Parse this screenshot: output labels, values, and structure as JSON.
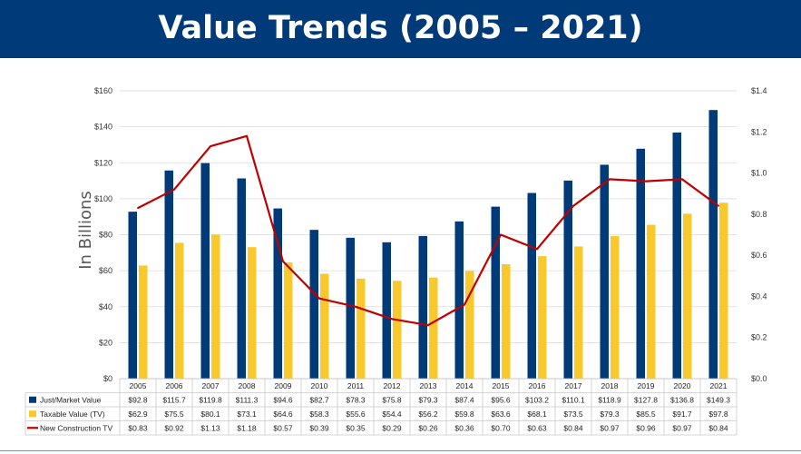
{
  "title": "Value Trends (2005 – 2021)",
  "colors": {
    "header_bg": "#003a78",
    "just_market": "#003a78",
    "taxable": "#f9c92b",
    "new_construction": "#c00000",
    "grid": "#d9d9d9"
  },
  "chart_data": {
    "type": "bar",
    "title": "",
    "ylabel": "In Billions",
    "ylim": [
      0,
      160
    ],
    "y_ticks": [
      "$0",
      "$20",
      "$40",
      "$60",
      "$80",
      "$100",
      "$120",
      "$140",
      "$160"
    ],
    "y2lim": [
      0,
      1.4
    ],
    "y2_ticks": [
      "$0.0",
      "$0.2",
      "$0.4",
      "$0.6",
      "$0.8",
      "$1.0",
      "$1.2",
      "$1.4"
    ],
    "grid": true,
    "legend": "data-table",
    "categories": [
      "2005",
      "2006",
      "2007",
      "2008",
      "2009",
      "2010",
      "2011",
      "2012",
      "2013",
      "2014",
      "2015",
      "2016",
      "2017",
      "2018",
      "2019",
      "2020",
      "2021"
    ],
    "series": [
      {
        "name": "Just/Market Value",
        "type": "bar",
        "axis": "left",
        "values": [
          92.8,
          115.7,
          119.8,
          111.3,
          94.6,
          82.7,
          78.3,
          75.8,
          79.3,
          87.4,
          95.6,
          103.2,
          110.1,
          118.9,
          127.8,
          136.8,
          149.3
        ],
        "labels": [
          "$92.8",
          "$115.7",
          "$119.8",
          "$111.3",
          "$94.6",
          "$82.7",
          "$78.3",
          "$75.8",
          "$79.3",
          "$87.4",
          "$95.6",
          "$103.2",
          "$110.1",
          "$118.9",
          "$127.8",
          "$136.8",
          "$149.3"
        ]
      },
      {
        "name": "Taxable Value (TV)",
        "type": "bar",
        "axis": "left",
        "values": [
          62.9,
          75.5,
          80.1,
          73.1,
          64.6,
          58.3,
          55.6,
          54.4,
          56.2,
          59.8,
          63.6,
          68.1,
          73.5,
          79.3,
          85.5,
          91.7,
          97.8
        ],
        "labels": [
          "$62.9",
          "$75.5",
          "$80.1",
          "$73.1",
          "$64.6",
          "$58.3",
          "$55.6",
          "$54.4",
          "$56.2",
          "$59.8",
          "$63.6",
          "$68.1",
          "$73.5",
          "$79.3",
          "$85.5",
          "$91.7",
          "$97.8"
        ]
      },
      {
        "name": "New Construction TV",
        "type": "line",
        "axis": "right",
        "values": [
          0.83,
          0.92,
          1.13,
          1.18,
          0.57,
          0.39,
          0.35,
          0.29,
          0.26,
          0.36,
          0.7,
          0.63,
          0.84,
          0.97,
          0.96,
          0.97,
          0.84
        ],
        "labels": [
          "$0.83",
          "$0.92",
          "$1.13",
          "$1.18",
          "$0.57",
          "$0.39",
          "$0.35",
          "$0.29",
          "$0.26",
          "$0.36",
          "$0.70",
          "$0.63",
          "$0.84",
          "$0.97",
          "$0.96",
          "$0.97",
          "$0.84"
        ]
      }
    ]
  }
}
